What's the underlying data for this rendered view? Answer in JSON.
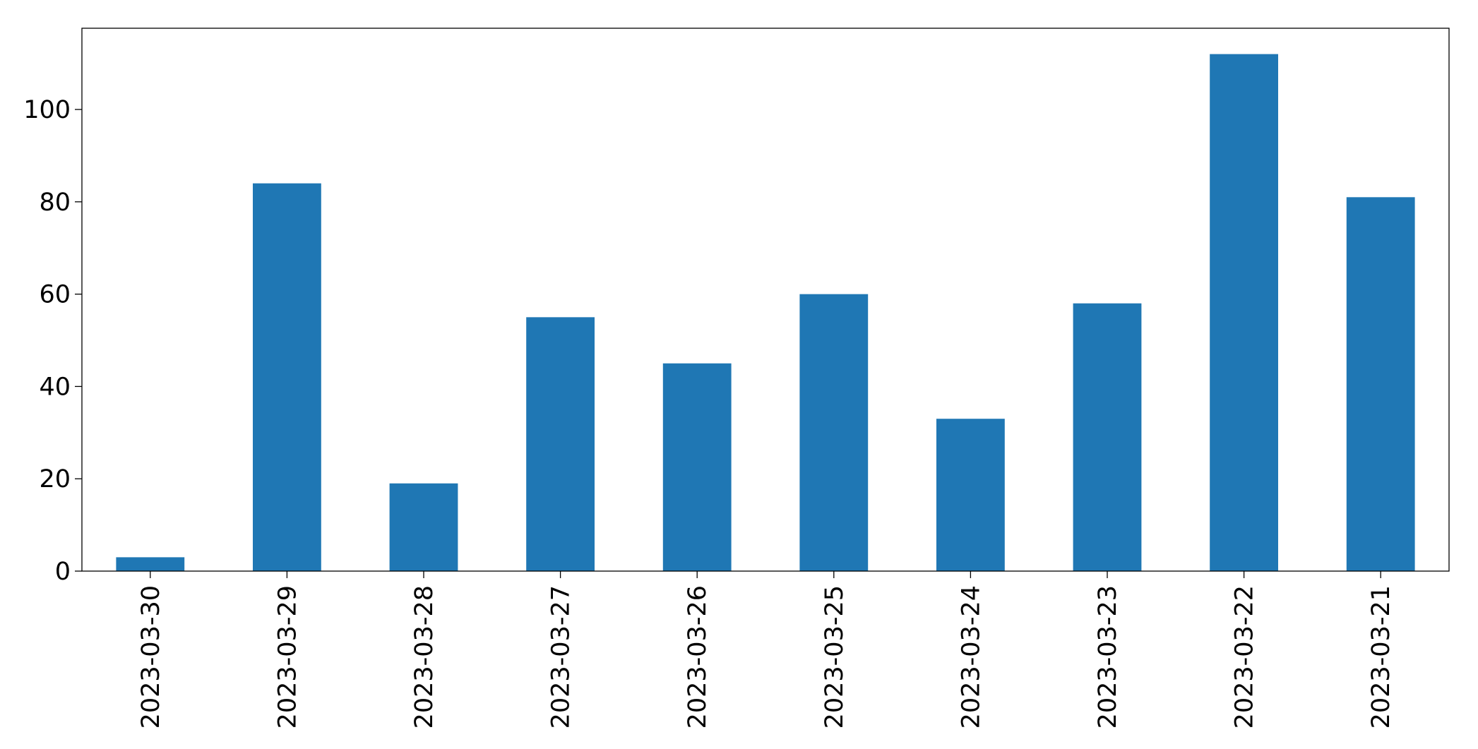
{
  "chart_data": {
    "type": "bar",
    "categories": [
      "2023-03-30",
      "2023-03-29",
      "2023-03-28",
      "2023-03-27",
      "2023-03-26",
      "2023-03-25",
      "2023-03-24",
      "2023-03-23",
      "2023-03-22",
      "2023-03-21"
    ],
    "values": [
      3,
      84,
      19,
      55,
      45,
      60,
      33,
      58,
      112,
      81
    ],
    "color": "#1f77b4",
    "ylim": [
      0,
      117.6
    ],
    "yticks": [
      0,
      20,
      40,
      60,
      80,
      100
    ],
    "grid": false
  }
}
